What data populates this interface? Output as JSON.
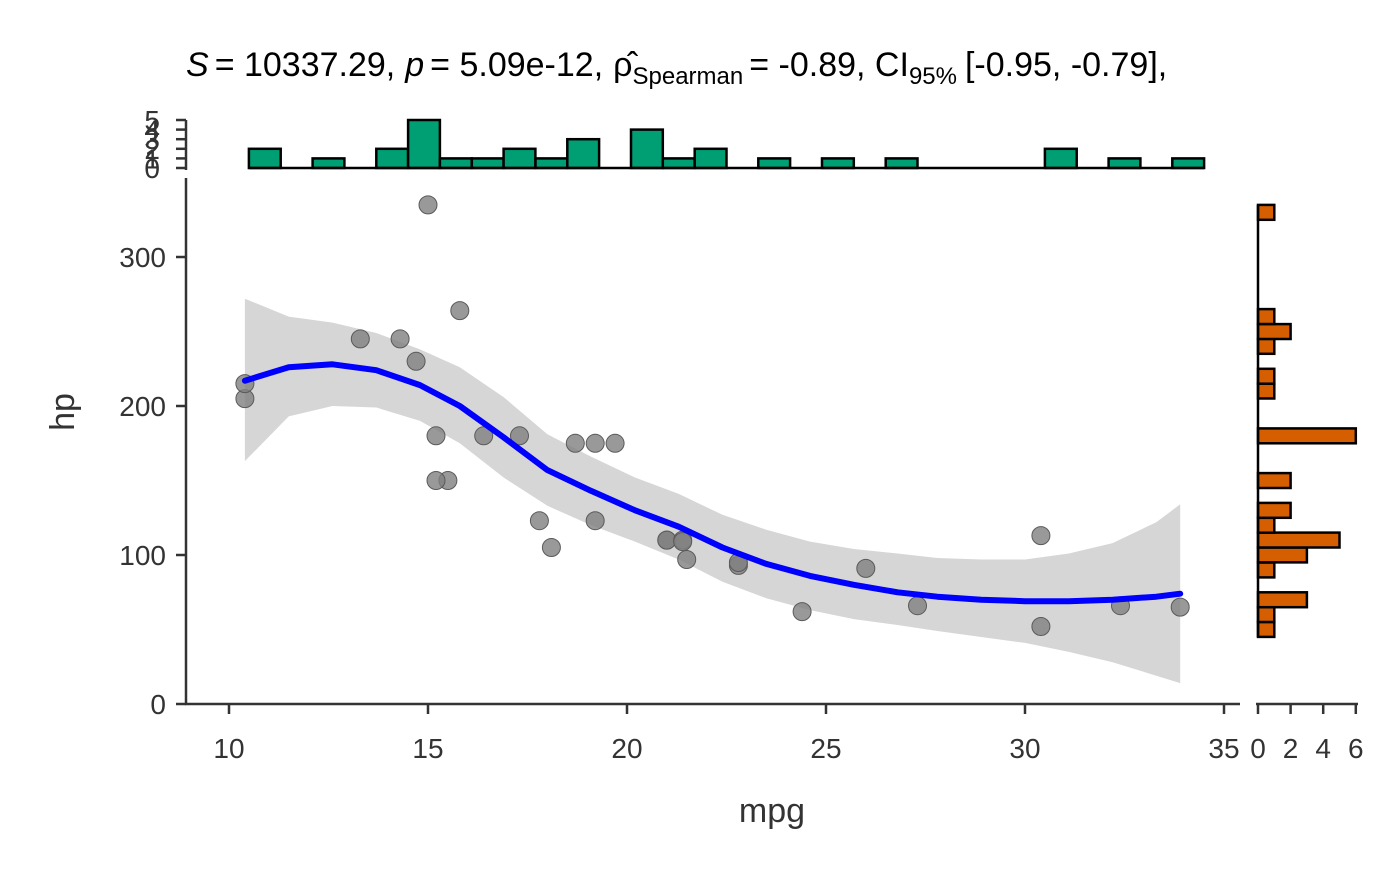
{
  "chart_data": {
    "type": "scatter",
    "title": {
      "s_label": "S",
      "s_value": "= 10337.29,",
      "p_label": "p",
      "p_value": "= 5.09e-12,",
      "rho_symbol": "ρ̂",
      "rho_sub": "Spearman",
      "rho_value": "= -0.89, CI",
      "ci_sub": "95%",
      "ci_value": "[-0.95, -0.79],"
    },
    "xlabel": "mpg",
    "ylabel": "hp",
    "xlim": [
      9,
      35.5
    ],
    "ylim": [
      0,
      340
    ],
    "x_ticks": [
      10,
      15,
      20,
      25,
      30,
      35
    ],
    "y_ticks": [
      0,
      100,
      200,
      300
    ],
    "points": [
      {
        "x": 21.0,
        "y": 110
      },
      {
        "x": 21.0,
        "y": 110
      },
      {
        "x": 22.8,
        "y": 93
      },
      {
        "x": 21.4,
        "y": 110
      },
      {
        "x": 18.7,
        "y": 175
      },
      {
        "x": 18.1,
        "y": 105
      },
      {
        "x": 14.3,
        "y": 245
      },
      {
        "x": 24.4,
        "y": 62
      },
      {
        "x": 22.8,
        "y": 95
      },
      {
        "x": 19.2,
        "y": 123
      },
      {
        "x": 17.8,
        "y": 123
      },
      {
        "x": 16.4,
        "y": 180
      },
      {
        "x": 17.3,
        "y": 180
      },
      {
        "x": 15.2,
        "y": 180
      },
      {
        "x": 10.4,
        "y": 205
      },
      {
        "x": 10.4,
        "y": 215
      },
      {
        "x": 14.7,
        "y": 230
      },
      {
        "x": 32.4,
        "y": 66
      },
      {
        "x": 30.4,
        "y": 52
      },
      {
        "x": 33.9,
        "y": 65
      },
      {
        "x": 21.5,
        "y": 97
      },
      {
        "x": 15.5,
        "y": 150
      },
      {
        "x": 15.2,
        "y": 150
      },
      {
        "x": 13.3,
        "y": 245
      },
      {
        "x": 19.2,
        "y": 175
      },
      {
        "x": 27.3,
        "y": 66
      },
      {
        "x": 26.0,
        "y": 91
      },
      {
        "x": 30.4,
        "y": 113
      },
      {
        "x": 15.8,
        "y": 264
      },
      {
        "x": 19.7,
        "y": 175
      },
      {
        "x": 15.0,
        "y": 335
      },
      {
        "x": 21.4,
        "y": 109
      }
    ],
    "smooth": {
      "x": [
        10.4,
        11.5,
        12.6,
        13.7,
        14.8,
        15.8,
        16.9,
        18.0,
        19.1,
        20.2,
        21.3,
        22.4,
        23.5,
        24.6,
        25.7,
        26.8,
        27.8,
        28.9,
        30.0,
        31.1,
        32.2,
        33.3,
        33.9
      ],
      "y": [
        217,
        226,
        228,
        224,
        214,
        200,
        179,
        157,
        143,
        130,
        119,
        105,
        94,
        86,
        80,
        75,
        72,
        70,
        69,
        69,
        70,
        72,
        74
      ],
      "lower": [
        163,
        193,
        200,
        199,
        190,
        175,
        152,
        133,
        120,
        109,
        97,
        82,
        71,
        63,
        57,
        53,
        49,
        45,
        41,
        35,
        28,
        19,
        14
      ],
      "upper": [
        272,
        260,
        256,
        249,
        238,
        226,
        206,
        181,
        166,
        152,
        141,
        127,
        117,
        109,
        104,
        101,
        98,
        97,
        97,
        101,
        108,
        122,
        134
      ],
      "color": "#0000FF",
      "band_color": "#D6D6D6"
    },
    "point_color": "#7F7F7F",
    "top_histogram": {
      "color": "#009E73",
      "ylim": [
        0,
        5
      ],
      "y_ticks": [
        0,
        1,
        2,
        3,
        4,
        5
      ],
      "tick_labels": [
        "0",
        "1",
        "2",
        "3",
        "4",
        "5"
      ],
      "bins": [
        {
          "x0": 10.5,
          "x1": 11.3,
          "count": 2
        },
        {
          "x0": 12.1,
          "x1": 12.9,
          "count": 1
        },
        {
          "x0": 13.7,
          "x1": 14.5,
          "count": 2
        },
        {
          "x0": 14.5,
          "x1": 15.3,
          "count": 5
        },
        {
          "x0": 15.3,
          "x1": 16.1,
          "count": 1
        },
        {
          "x0": 16.1,
          "x1": 16.9,
          "count": 1
        },
        {
          "x0": 16.9,
          "x1": 17.7,
          "count": 2
        },
        {
          "x0": 17.7,
          "x1": 18.5,
          "count": 1
        },
        {
          "x0": 18.5,
          "x1": 19.3,
          "count": 3
        },
        {
          "x0": 20.1,
          "x1": 20.9,
          "count": 4
        },
        {
          "x0": 20.9,
          "x1": 21.7,
          "count": 1
        },
        {
          "x0": 21.7,
          "x1": 22.5,
          "count": 2
        },
        {
          "x0": 23.3,
          "x1": 24.1,
          "count": 1
        },
        {
          "x0": 24.9,
          "x1": 25.7,
          "count": 1
        },
        {
          "x0": 26.5,
          "x1": 27.3,
          "count": 1
        },
        {
          "x0": 30.5,
          "x1": 31.3,
          "count": 2
        },
        {
          "x0": 32.1,
          "x1": 32.9,
          "count": 1
        },
        {
          "x0": 33.7,
          "x1": 34.5,
          "count": 1
        }
      ]
    },
    "right_histogram": {
      "color": "#D55E00",
      "xlim": [
        0,
        6
      ],
      "x_ticks": [
        0,
        2,
        4,
        6
      ],
      "bins": [
        {
          "y0": 45,
          "y1": 55,
          "count": 1
        },
        {
          "y0": 55,
          "y1": 65,
          "count": 1
        },
        {
          "y0": 65,
          "y1": 75,
          "count": 3
        },
        {
          "y0": 85,
          "y1": 95,
          "count": 1
        },
        {
          "y0": 95,
          "y1": 105,
          "count": 3
        },
        {
          "y0": 105,
          "y1": 115,
          "count": 5
        },
        {
          "y0": 115,
          "y1": 125,
          "count": 1
        },
        {
          "y0": 125,
          "y1": 135,
          "count": 2
        },
        {
          "y0": 145,
          "y1": 155,
          "count": 2
        },
        {
          "y0": 175,
          "y1": 185,
          "count": 6
        },
        {
          "y0": 205,
          "y1": 215,
          "count": 1
        },
        {
          "y0": 215,
          "y1": 225,
          "count": 1
        },
        {
          "y0": 235,
          "y1": 245,
          "count": 1
        },
        {
          "y0": 245,
          "y1": 255,
          "count": 2
        },
        {
          "y0": 255,
          "y1": 265,
          "count": 1
        },
        {
          "y0": 325,
          "y1": 335,
          "count": 1
        }
      ]
    }
  }
}
